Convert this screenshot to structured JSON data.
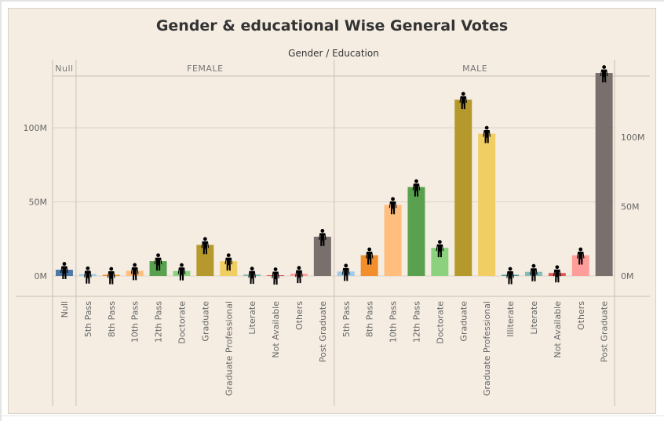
{
  "chart_data": {
    "type": "bar",
    "title": "Gender & educational Wise General Votes",
    "column_header": "Gender / Education",
    "y_unit": "M",
    "ylim": [
      -14,
      130
    ],
    "y_ticks": [
      0,
      50,
      100
    ],
    "y_tick_labels": [
      "0M",
      "50M",
      "100M"
    ],
    "right_axis_ylim": [
      -14,
      146
    ],
    "right_y_ticks": [
      0,
      50,
      100
    ],
    "right_y_tick_labels": [
      "0M",
      "50M",
      "100M"
    ],
    "marker_icon": "person-icon",
    "grid": true,
    "groups": [
      {
        "name": "Null",
        "bars": [
          {
            "category": "Null",
            "value": 4.2,
            "color": "#4e79a7"
          }
        ]
      },
      {
        "name": "FEMALE",
        "bars": [
          {
            "category": "5th Pass",
            "value": 1.2,
            "color": "#a0cbe8"
          },
          {
            "category": "8th Pass",
            "value": 0.8,
            "color": "#f28e2b"
          },
          {
            "category": "10th Pass",
            "value": 3.5,
            "color": "#ffbe7d"
          },
          {
            "category": "12th Pass",
            "value": 10.0,
            "color": "#59a14f"
          },
          {
            "category": "Doctorate",
            "value": 3.4,
            "color": "#8cd17d"
          },
          {
            "category": "Graduate",
            "value": 21.0,
            "color": "#b6992d"
          },
          {
            "category": "Graduate Professional",
            "value": 10.0,
            "color": "#f1ce63"
          },
          {
            "category": "Literate",
            "value": 1.0,
            "color": "#86bcb6"
          },
          {
            "category": "Not Available",
            "value": 0.5,
            "color": "#e15759"
          },
          {
            "category": "Others",
            "value": 1.5,
            "color": "#ff9d9a"
          },
          {
            "category": "Post Graduate",
            "value": 26.5,
            "color": "#79706e"
          }
        ]
      },
      {
        "name": "MALE",
        "bars": [
          {
            "category": "5th Pass",
            "value": 3.0,
            "color": "#a0cbe8"
          },
          {
            "category": "8th Pass",
            "value": 14.0,
            "color": "#f28e2b"
          },
          {
            "category": "10th Pass",
            "value": 48.0,
            "color": "#ffbe7d"
          },
          {
            "category": "12th Pass",
            "value": 60.0,
            "color": "#59a14f"
          },
          {
            "category": "Doctorate",
            "value": 19.0,
            "color": "#8cd17d"
          },
          {
            "category": "Graduate",
            "value": 119.0,
            "color": "#b6992d"
          },
          {
            "category": "Graduate Professional",
            "value": 96.0,
            "color": "#f1ce63"
          },
          {
            "category": "Illiterate",
            "value": 0.8,
            "color": "#499894"
          },
          {
            "category": "Literate",
            "value": 2.8,
            "color": "#86bcb6"
          },
          {
            "category": "Not Available",
            "value": 2.0,
            "color": "#e15759"
          },
          {
            "category": "Others",
            "value": 14.0,
            "color": "#ff9d9a"
          },
          {
            "category": "Post Graduate",
            "value": 137.0,
            "color": "#79706e"
          }
        ]
      }
    ]
  }
}
